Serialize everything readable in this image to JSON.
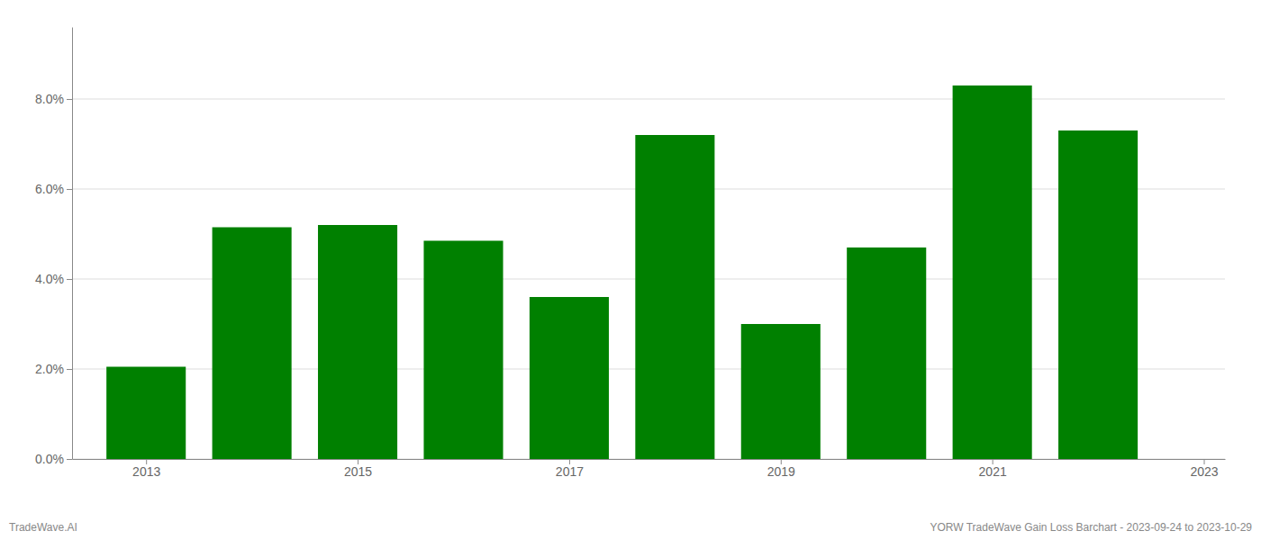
{
  "chart_data": {
    "type": "bar",
    "x": [
      2013,
      2014,
      2015,
      2016,
      2017,
      2018,
      2019,
      2020,
      2021,
      2022
    ],
    "values": [
      0.0205,
      0.0515,
      0.052,
      0.0485,
      0.036,
      0.072,
      0.03,
      0.047,
      0.083,
      0.073
    ],
    "color": "#008000",
    "xlim": [
      2012.3,
      2023.2
    ],
    "xticks": [
      2013,
      2015,
      2017,
      2019,
      2021,
      2023
    ],
    "ylim": [
      0,
      0.096
    ],
    "yticks": [
      {
        "value": 0.0,
        "label": "0.0%"
      },
      {
        "value": 0.02,
        "label": "2.0%"
      },
      {
        "value": 0.04,
        "label": "4.0%"
      },
      {
        "value": 0.06,
        "label": "6.0%"
      },
      {
        "value": 0.08,
        "label": "8.0%"
      }
    ],
    "grid": true,
    "annotations": [
      "TradeWave.AI",
      "YORW TradeWave Gain Loss Barchart - 2023-09-24 to 2023-10-29"
    ]
  }
}
